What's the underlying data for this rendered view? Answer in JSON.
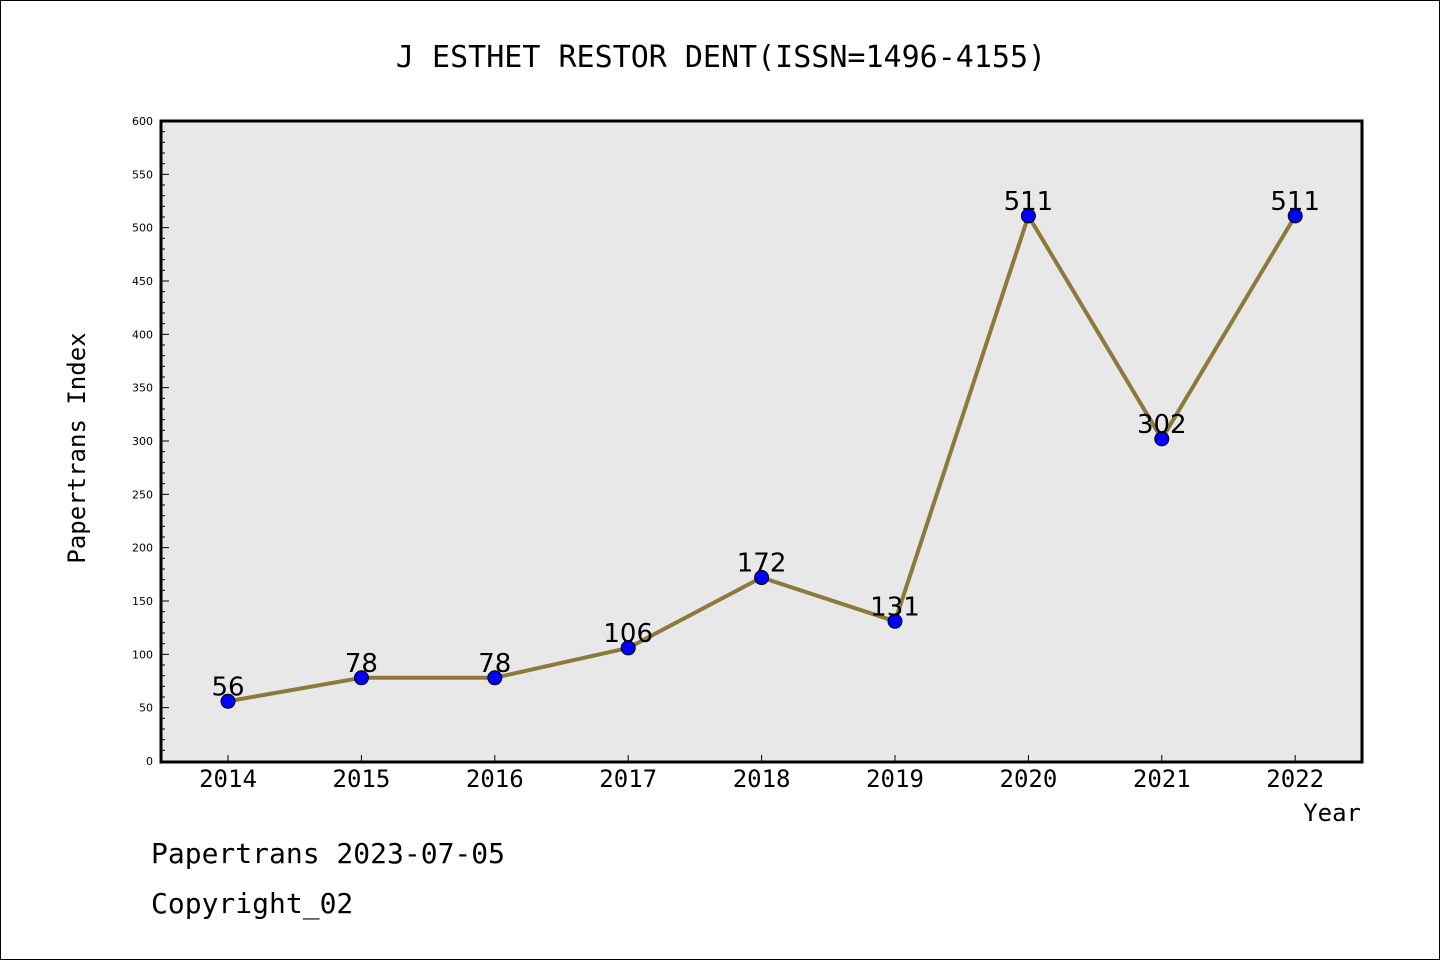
{
  "chart_data": {
    "type": "line",
    "title": "J ESTHET RESTOR DENT(ISSN=1496-4155)",
    "xlabel": "Year",
    "ylabel": "Papertrans Index",
    "categories": [
      "2014",
      "2015",
      "2016",
      "2017",
      "2018",
      "2019",
      "2020",
      "2021",
      "2022"
    ],
    "series": [
      {
        "values": [
          56,
          78,
          78,
          106,
          172,
          131,
          511,
          302,
          511
        ]
      }
    ],
    "data_labels": [
      "56",
      "78",
      "78",
      "106",
      "172",
      "131",
      "511",
      "302",
      "511"
    ],
    "ylim": [
      0,
      600
    ],
    "yticks": [
      0,
      50,
      100,
      150,
      200,
      250,
      300,
      350,
      400,
      450,
      500,
      550,
      600
    ],
    "ytick_labels": [
      "0",
      "50",
      "100",
      "150",
      "200",
      "250",
      "300",
      "350",
      "400",
      "450",
      "500",
      "550",
      "600"
    ],
    "grid": false,
    "colors": {
      "line": "#8b7a3a",
      "marker": "#0000ff",
      "plot_bg": "#e8e8e8"
    }
  },
  "footer": {
    "line1": "Papertrans 2023-07-05",
    "line2": "Copyright_02"
  }
}
